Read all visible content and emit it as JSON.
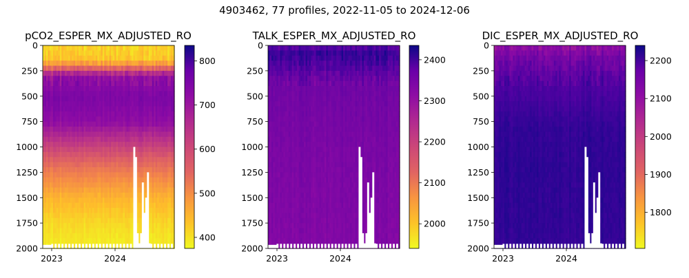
{
  "figure": {
    "suptitle": "4903462, 77 profiles, 2022-11-05 to 2024-12-06"
  },
  "chart_data": [
    {
      "type": "heatmap",
      "title": "pCO2_ESPER_MX_ADJUSTED_RO",
      "x_ticks": [
        "2023",
        "2024"
      ],
      "y_ticks": [
        0,
        250,
        500,
        750,
        1000,
        1250,
        1500,
        1750,
        2000
      ],
      "y_range": [
        2000,
        0
      ],
      "y_inverted": true,
      "colormap": "plasma_r",
      "colorbar_ticks": [
        400,
        500,
        600,
        700,
        800
      ],
      "colorbar_range": [
        375,
        835
      ],
      "depth_profile": [
        {
          "depth": 0,
          "value": 415
        },
        {
          "depth": 150,
          "value": 430
        },
        {
          "depth": 300,
          "value": 690
        },
        {
          "depth": 500,
          "value": 720
        },
        {
          "depth": 750,
          "value": 700
        },
        {
          "depth": 1000,
          "value": 610
        },
        {
          "depth": 1250,
          "value": 520
        },
        {
          "depth": 1500,
          "value": 450
        },
        {
          "depth": 1750,
          "value": 410
        },
        {
          "depth": 2000,
          "value": 385
        }
      ]
    },
    {
      "type": "heatmap",
      "title": "TALK_ESPER_MX_ADJUSTED_RO",
      "x_ticks": [
        "2023",
        "2024"
      ],
      "y_ticks": [
        0,
        250,
        500,
        750,
        1000,
        1250,
        1500,
        1750,
        2000
      ],
      "y_range": [
        2000,
        0
      ],
      "y_inverted": true,
      "colormap": "plasma_r",
      "colorbar_ticks": [
        2000,
        2100,
        2200,
        2300,
        2400
      ],
      "colorbar_range": [
        1940,
        2435
      ],
      "depth_profile": [
        {
          "depth": 0,
          "value": 2330
        },
        {
          "depth": 50,
          "value": 2400
        },
        {
          "depth": 200,
          "value": 2370
        },
        {
          "depth": 350,
          "value": 2330
        },
        {
          "depth": 1000,
          "value": 2315
        },
        {
          "depth": 2000,
          "value": 2305
        }
      ]
    },
    {
      "type": "heatmap",
      "title": "DIC_ESPER_MX_ADJUSTED_RO",
      "x_ticks": [
        "2023",
        "2024"
      ],
      "y_ticks": [
        0,
        250,
        500,
        750,
        1000,
        1250,
        1500,
        1750,
        2000
      ],
      "y_range": [
        2000,
        0
      ],
      "y_inverted": true,
      "colormap": "plasma_r",
      "colorbar_ticks": [
        1800,
        1900,
        2000,
        2100,
        2200
      ],
      "colorbar_range": [
        1705,
        2240
      ],
      "depth_profile": [
        {
          "depth": 0,
          "value": 2080
        },
        {
          "depth": 150,
          "value": 2130
        },
        {
          "depth": 400,
          "value": 2170
        },
        {
          "depth": 800,
          "value": 2200
        },
        {
          "depth": 1200,
          "value": 2205
        },
        {
          "depth": 2000,
          "value": 2200
        }
      ]
    }
  ]
}
